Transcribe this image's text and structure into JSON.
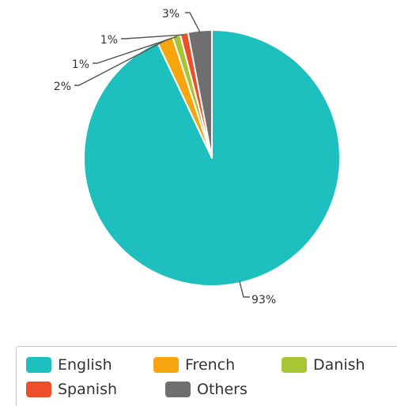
{
  "chart_data": {
    "type": "pie",
    "title": "",
    "categories": [
      "English",
      "French",
      "Danish",
      "Spanish",
      "Others"
    ],
    "values": [
      93,
      2,
      1,
      1,
      3
    ],
    "data_labels": [
      "93%",
      "2%",
      "1%",
      "1%",
      "3%"
    ],
    "colors": [
      "#1dbfbf",
      "#f7a50f",
      "#a8c536",
      "#ee4f2a",
      "#6f6f6f"
    ],
    "start_at": "12 o'clock",
    "legend_position": "bottom",
    "unit": "%"
  }
}
